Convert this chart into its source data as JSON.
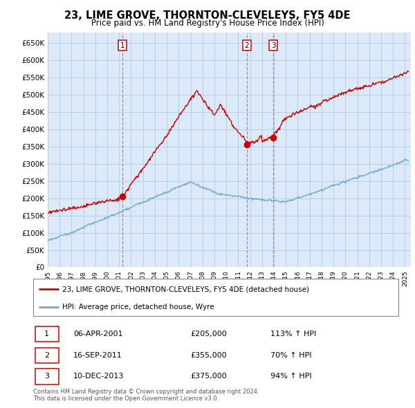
{
  "title": "23, LIME GROVE, THORNTON-CLEVELEYS, FY5 4DE",
  "subtitle": "Price paid vs. HM Land Registry's House Price Index (HPI)",
  "legend_line1": "23, LIME GROVE, THORNTON-CLEVELEYS, FY5 4DE (detached house)",
  "legend_line2": "HPI: Average price, detached house, Wyre",
  "footer1": "Contains HM Land Registry data © Crown copyright and database right 2024.",
  "footer2": "This data is licensed under the Open Government Licence v3.0.",
  "transactions": [
    {
      "num": 1,
      "date": "06-APR-2001",
      "price": "£205,000",
      "change": "113% ↑ HPI"
    },
    {
      "num": 2,
      "date": "16-SEP-2011",
      "price": "£355,000",
      "change": "70% ↑ HPI"
    },
    {
      "num": 3,
      "date": "10-DEC-2013",
      "price": "£375,000",
      "change": "94% ↑ HPI"
    }
  ],
  "sale_years": [
    2001.27,
    2011.72,
    2013.94
  ],
  "sale_values": [
    205000,
    355000,
    375000
  ],
  "sale_labels": [
    "1",
    "2",
    "3"
  ],
  "hpi_color": "#6fa8d8",
  "price_color": "#cc0000",
  "chart_bg": "#dce9f8",
  "outer_bg": "#ffffff",
  "grid_color": "#b0c8e8",
  "vline_color": "#e06060",
  "ylim": [
    0,
    680000
  ],
  "xlim_start": 1995.0,
  "xlim_end": 2025.5,
  "yticks": [
    0,
    50000,
    100000,
    150000,
    200000,
    250000,
    300000,
    350000,
    400000,
    450000,
    500000,
    550000,
    600000,
    650000
  ],
  "ytick_labels": [
    "£0",
    "£50K",
    "£100K",
    "£150K",
    "£200K",
    "£250K",
    "£300K",
    "£350K",
    "£400K",
    "£450K",
    "£500K",
    "£550K",
    "£600K",
    "£650K"
  ],
  "xticks": [
    1995,
    1996,
    1997,
    1998,
    1999,
    2000,
    2001,
    2002,
    2003,
    2004,
    2005,
    2006,
    2007,
    2008,
    2009,
    2010,
    2011,
    2012,
    2013,
    2014,
    2015,
    2016,
    2017,
    2018,
    2019,
    2020,
    2021,
    2022,
    2023,
    2024,
    2025
  ]
}
